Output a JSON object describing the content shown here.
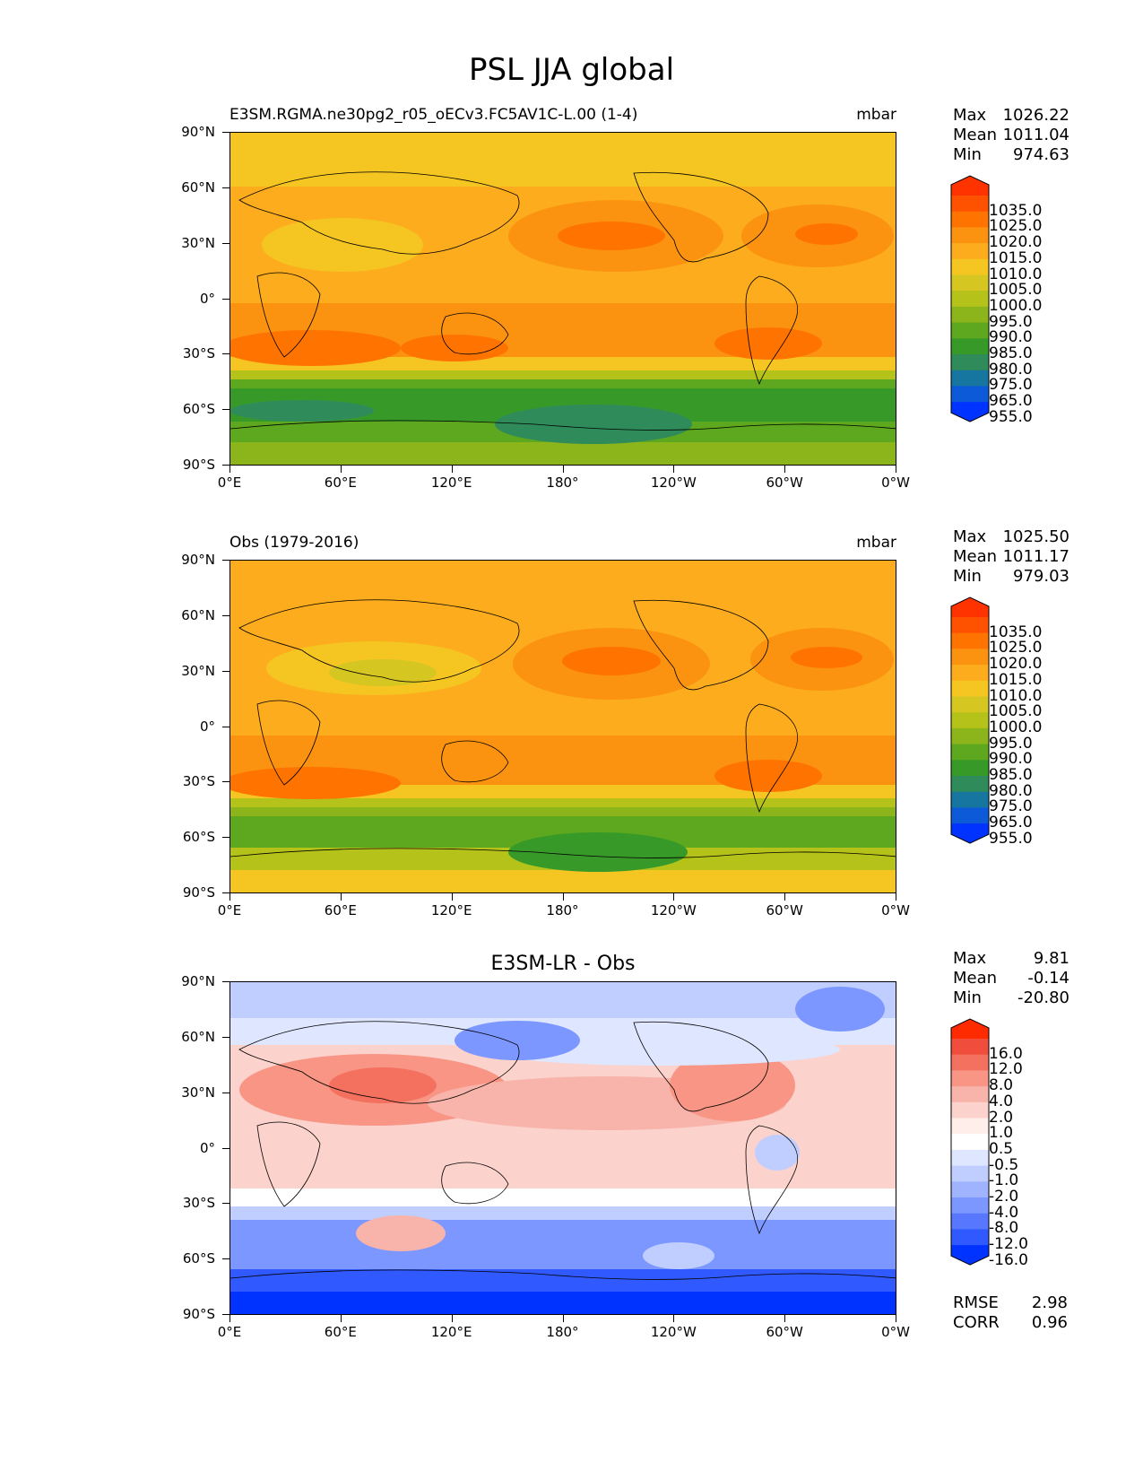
{
  "figure": {
    "title": "PSL JJA global"
  },
  "axes": {
    "y_ticks": [
      "90°N",
      "60°N",
      "30°N",
      "0°",
      "30°S",
      "60°S",
      "90°S"
    ],
    "x_ticks": [
      "0°E",
      "60°E",
      "120°E",
      "180°",
      "120°W",
      "60°W",
      "0°W"
    ]
  },
  "panels": [
    {
      "title": "E3SM.RGMA.ne30pg2_r05_oECv3.FC5AV1C-L.00 (1-4)",
      "title_style": "left",
      "units": "mbar",
      "stats": [
        {
          "label": "Max",
          "value": "1026.22"
        },
        {
          "label": "Mean",
          "value": "1011.04"
        },
        {
          "label": "Min",
          "value": "974.63"
        }
      ],
      "colorbar": {
        "levels": [
          "1035.0",
          "1025.0",
          "1020.0",
          "1015.0",
          "1010.0",
          "1005.0",
          "1000.0",
          "995.0",
          "990.0",
          "985.0",
          "980.0",
          "975.0",
          "965.0",
          "955.0"
        ],
        "colors": [
          "#ff3300",
          "#ff5200",
          "#ff7400",
          "#fc9310",
          "#fcac1c",
          "#f5c622",
          "#d6c622",
          "#b5c21a",
          "#8cb51c",
          "#5da81e",
          "#379a28",
          "#2f8c5a",
          "#1776a0",
          "#0d5ad8",
          "#0033ff"
        ]
      },
      "metrics": []
    },
    {
      "title": "Obs (1979-2016)",
      "title_style": "left",
      "units": "mbar",
      "stats": [
        {
          "label": "Max",
          "value": "1025.50"
        },
        {
          "label": "Mean",
          "value": "1011.17"
        },
        {
          "label": "Min",
          "value": "979.03"
        }
      ],
      "colorbar": {
        "levels": [
          "1035.0",
          "1025.0",
          "1020.0",
          "1015.0",
          "1010.0",
          "1005.0",
          "1000.0",
          "995.0",
          "990.0",
          "985.0",
          "980.0",
          "975.0",
          "965.0",
          "955.0"
        ],
        "colors": [
          "#ff3300",
          "#ff5200",
          "#ff7400",
          "#fc9310",
          "#fcac1c",
          "#f5c622",
          "#d6c622",
          "#b5c21a",
          "#8cb51c",
          "#5da81e",
          "#379a28",
          "#2f8c5a",
          "#1776a0",
          "#0d5ad8",
          "#0033ff"
        ]
      },
      "metrics": []
    },
    {
      "title": "E3SM-LR - Obs",
      "title_style": "center",
      "units": "",
      "stats": [
        {
          "label": "Max",
          "value": "9.81"
        },
        {
          "label": "Mean",
          "value": "-0.14"
        },
        {
          "label": "Min",
          "value": "-20.80"
        }
      ],
      "colorbar": {
        "levels": [
          "16.0",
          "12.0",
          "8.0",
          "4.0",
          "2.0",
          "1.0",
          "0.5",
          "-0.5",
          "-1.0",
          "-2.0",
          "-4.0",
          "-8.0",
          "-12.0",
          "-16.0"
        ],
        "colors": [
          "#ff2b00",
          "#f14d3c",
          "#f4715f",
          "#f89585",
          "#f8b4aa",
          "#fbd2cc",
          "#ffeeea",
          "#ffffff",
          "#dfe6ff",
          "#c0ceff",
          "#9fb3ff",
          "#7c97ff",
          "#5777ff",
          "#3059ff",
          "#0033ff"
        ]
      },
      "metrics": [
        {
          "label": "RMSE",
          "value": "2.98"
        },
        {
          "label": "CORR",
          "value": "0.96"
        }
      ]
    }
  ]
}
